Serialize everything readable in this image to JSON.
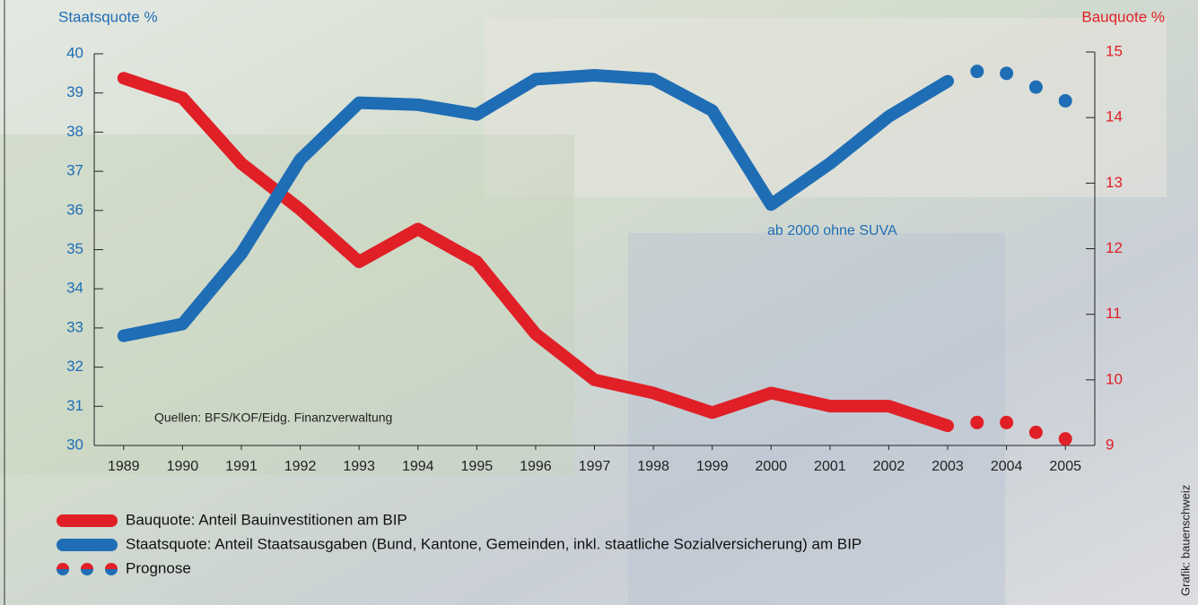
{
  "chart_data": {
    "type": "line",
    "y_label": "Staatsquote %",
    "y2_label": "Bauquote %",
    "xlim": [
      1988.5,
      2005.5
    ],
    "xticks": [
      1989,
      1990,
      1991,
      1992,
      1993,
      1994,
      1995,
      1996,
      1997,
      1998,
      1999,
      2000,
      2001,
      2002,
      2003,
      2004,
      2005
    ],
    "ylim": [
      30,
      40
    ],
    "yticks": [
      30,
      31,
      32,
      33,
      34,
      35,
      36,
      37,
      38,
      39,
      40
    ],
    "y2lim": [
      9,
      15
    ],
    "y2ticks": [
      9,
      10,
      11,
      12,
      13,
      14,
      15
    ],
    "series": [
      {
        "name": "Bauquote: Anteil Bauinvestitionen am BIP",
        "color": "#e01f26",
        "axis": "y2",
        "x": [
          1989,
          1990,
          1991,
          1992,
          1993,
          1994,
          1995,
          1996,
          1997,
          1998,
          1999,
          2000,
          2001,
          2002,
          2003
        ],
        "values": [
          14.6,
          14.3,
          13.3,
          12.6,
          11.8,
          12.3,
          11.8,
          10.7,
          10.0,
          9.8,
          9.5,
          9.8,
          9.6,
          9.6,
          9.3
        ]
      },
      {
        "name": "Staatsquote: Anteil Staatsausgaben (Bund, Kantone, Gemeinden, inkl. staatliche Sozialversicherung) am BIP",
        "color": "#1f6db5",
        "x": [
          1989,
          1990,
          1991,
          1992,
          1993,
          1994,
          1995,
          1996,
          1997,
          1998,
          1999,
          2000,
          2001,
          2002,
          2003
        ],
        "values": [
          32.8,
          33.1,
          34.9,
          37.3,
          38.75,
          38.7,
          38.45,
          39.35,
          39.45,
          39.35,
          38.55,
          36.15,
          37.2,
          38.4,
          39.3
        ]
      }
    ],
    "forecast": {
      "name": "Prognose",
      "x": [
        2003.5,
        2004,
        2004.5,
        2005
      ],
      "values": [
        39.55,
        39.5,
        39.15,
        38.8
      ],
      "values_y2": [
        9.35,
        9.35,
        9.2,
        9.1
      ]
    },
    "annotations": [
      "ab 2000 ohne SUVA",
      "Quellen: BFS/KOF/Eidg. Finanzverwaltung"
    ],
    "credit": "Grafik: bauenschweiz"
  }
}
